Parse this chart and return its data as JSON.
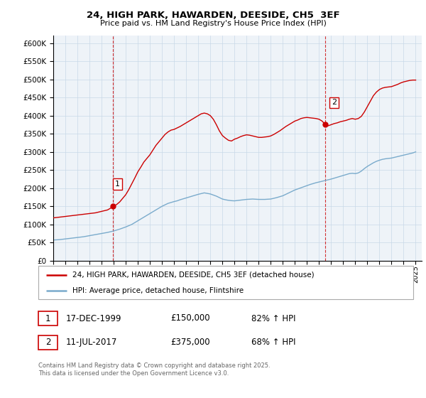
{
  "title": "24, HIGH PARK, HAWARDEN, DEESIDE, CH5  3EF",
  "subtitle": "Price paid vs. HM Land Registry's House Price Index (HPI)",
  "ylabel_ticks": [
    0,
    50000,
    100000,
    150000,
    200000,
    250000,
    300000,
    350000,
    400000,
    450000,
    500000,
    550000,
    600000
  ],
  "ylim": [
    0,
    620000
  ],
  "xlim_start": 1995.0,
  "xlim_end": 2025.5,
  "red_color": "#cc0000",
  "blue_color": "#7aabcc",
  "marker1_date": 1999.96,
  "marker1_value": 150000,
  "marker2_date": 2017.53,
  "marker2_value": 375000,
  "legend_red": "24, HIGH PARK, HAWARDEN, DEESIDE, CH5 3EF (detached house)",
  "legend_blue": "HPI: Average price, detached house, Flintshire",
  "footnote": "Contains HM Land Registry data © Crown copyright and database right 2025.\nThis data is licensed under the Open Government Licence v3.0.",
  "table_rows": [
    {
      "num": "1",
      "date": "17-DEC-1999",
      "price": "£150,000",
      "hpi": "82% ↑ HPI"
    },
    {
      "num": "2",
      "date": "11-JUL-2017",
      "price": "£375,000",
      "hpi": "68% ↑ HPI"
    }
  ],
  "red_x": [
    1995.0,
    1995.25,
    1995.5,
    1995.75,
    1996.0,
    1996.25,
    1996.5,
    1996.75,
    1997.0,
    1997.25,
    1997.5,
    1997.75,
    1998.0,
    1998.25,
    1998.5,
    1998.75,
    1999.0,
    1999.25,
    1999.5,
    1999.75,
    1999.96,
    2000.25,
    2000.5,
    2000.75,
    2001.0,
    2001.25,
    2001.5,
    2001.75,
    2002.0,
    2002.25,
    2002.5,
    2002.75,
    2003.0,
    2003.25,
    2003.5,
    2003.75,
    2004.0,
    2004.25,
    2004.5,
    2004.75,
    2005.0,
    2005.25,
    2005.5,
    2005.75,
    2006.0,
    2006.25,
    2006.5,
    2006.75,
    2007.0,
    2007.25,
    2007.5,
    2007.75,
    2008.0,
    2008.25,
    2008.5,
    2008.75,
    2009.0,
    2009.25,
    2009.5,
    2009.75,
    2010.0,
    2010.25,
    2010.5,
    2010.75,
    2011.0,
    2011.25,
    2011.5,
    2011.75,
    2012.0,
    2012.25,
    2012.5,
    2012.75,
    2013.0,
    2013.25,
    2013.5,
    2013.75,
    2014.0,
    2014.25,
    2014.5,
    2014.75,
    2015.0,
    2015.25,
    2015.5,
    2015.75,
    2016.0,
    2016.25,
    2016.5,
    2016.75,
    2017.0,
    2017.25,
    2017.53,
    2017.75,
    2018.0,
    2018.25,
    2018.5,
    2018.75,
    2019.0,
    2019.25,
    2019.5,
    2019.75,
    2020.0,
    2020.25,
    2020.5,
    2020.75,
    2021.0,
    2021.25,
    2021.5,
    2021.75,
    2022.0,
    2022.25,
    2022.5,
    2022.75,
    2023.0,
    2023.25,
    2023.5,
    2023.75,
    2024.0,
    2024.25,
    2024.5,
    2024.75,
    2025.0
  ],
  "red_y": [
    118000,
    119000,
    120000,
    121000,
    122000,
    123000,
    124000,
    125000,
    126000,
    127000,
    128000,
    129000,
    130000,
    131000,
    132000,
    134000,
    136000,
    138000,
    140000,
    145000,
    150000,
    155000,
    162000,
    172000,
    182000,
    196000,
    212000,
    228000,
    245000,
    258000,
    272000,
    282000,
    292000,
    305000,
    318000,
    328000,
    338000,
    348000,
    355000,
    360000,
    362000,
    366000,
    370000,
    375000,
    380000,
    385000,
    390000,
    395000,
    400000,
    405000,
    407000,
    405000,
    400000,
    390000,
    375000,
    358000,
    345000,
    338000,
    332000,
    330000,
    335000,
    338000,
    342000,
    345000,
    347000,
    346000,
    344000,
    342000,
    340000,
    340000,
    341000,
    342000,
    344000,
    348000,
    353000,
    358000,
    364000,
    370000,
    375000,
    380000,
    385000,
    388000,
    392000,
    394000,
    395000,
    394000,
    393000,
    392000,
    390000,
    385000,
    375000,
    372000,
    375000,
    378000,
    380000,
    383000,
    385000,
    387000,
    390000,
    392000,
    390000,
    392000,
    398000,
    410000,
    425000,
    440000,
    455000,
    465000,
    472000,
    476000,
    478000,
    479000,
    480000,
    483000,
    486000,
    490000,
    493000,
    495000,
    497000,
    498000,
    498000
  ],
  "blue_x": [
    1995.0,
    1995.25,
    1995.5,
    1995.75,
    1996.0,
    1996.25,
    1996.5,
    1996.75,
    1997.0,
    1997.25,
    1997.5,
    1997.75,
    1998.0,
    1998.25,
    1998.5,
    1998.75,
    1999.0,
    1999.25,
    1999.5,
    1999.75,
    2000.0,
    2000.25,
    2000.5,
    2000.75,
    2001.0,
    2001.25,
    2001.5,
    2001.75,
    2002.0,
    2002.25,
    2002.5,
    2002.75,
    2003.0,
    2003.25,
    2003.5,
    2003.75,
    2004.0,
    2004.25,
    2004.5,
    2004.75,
    2005.0,
    2005.25,
    2005.5,
    2005.75,
    2006.0,
    2006.25,
    2006.5,
    2006.75,
    2007.0,
    2007.25,
    2007.5,
    2007.75,
    2008.0,
    2008.25,
    2008.5,
    2008.75,
    2009.0,
    2009.25,
    2009.5,
    2009.75,
    2010.0,
    2010.25,
    2010.5,
    2010.75,
    2011.0,
    2011.25,
    2011.5,
    2011.75,
    2012.0,
    2012.25,
    2012.5,
    2012.75,
    2013.0,
    2013.25,
    2013.5,
    2013.75,
    2014.0,
    2014.25,
    2014.5,
    2014.75,
    2015.0,
    2015.25,
    2015.5,
    2015.75,
    2016.0,
    2016.25,
    2016.5,
    2016.75,
    2017.0,
    2017.25,
    2017.5,
    2017.75,
    2018.0,
    2018.25,
    2018.5,
    2018.75,
    2019.0,
    2019.25,
    2019.5,
    2019.75,
    2020.0,
    2020.25,
    2020.5,
    2020.75,
    2021.0,
    2021.25,
    2021.5,
    2021.75,
    2022.0,
    2022.25,
    2022.5,
    2022.75,
    2023.0,
    2023.25,
    2023.5,
    2023.75,
    2024.0,
    2024.25,
    2024.5,
    2024.75,
    2025.0
  ],
  "blue_y": [
    57000,
    57500,
    58000,
    59000,
    60000,
    61000,
    62000,
    63000,
    64000,
    65000,
    66000,
    67500,
    69000,
    70500,
    72000,
    73500,
    75000,
    76500,
    78000,
    80000,
    82000,
    84500,
    87000,
    90000,
    93000,
    96500,
    100000,
    105000,
    110000,
    115000,
    120000,
    125000,
    130000,
    135000,
    140000,
    145000,
    150000,
    154000,
    158000,
    160500,
    163000,
    165000,
    168000,
    170500,
    173000,
    175500,
    178000,
    180500,
    183000,
    185000,
    187000,
    185500,
    184000,
    181000,
    178000,
    174000,
    170000,
    168000,
    166500,
    165500,
    165000,
    166000,
    167000,
    168000,
    169000,
    169500,
    170000,
    169500,
    169000,
    169000,
    169000,
    169500,
    170000,
    172000,
    174000,
    176500,
    179000,
    183000,
    187000,
    191000,
    195000,
    198000,
    201000,
    204000,
    207000,
    210000,
    212500,
    215000,
    217000,
    219000,
    221000,
    223000,
    225000,
    227500,
    230000,
    232500,
    235000,
    237500,
    240000,
    241000,
    240000,
    242000,
    247000,
    254000,
    260000,
    265000,
    270000,
    274000,
    277000,
    279500,
    281000,
    282000,
    283000,
    285000,
    287000,
    289000,
    291000,
    293000,
    295000,
    297000,
    300000
  ]
}
